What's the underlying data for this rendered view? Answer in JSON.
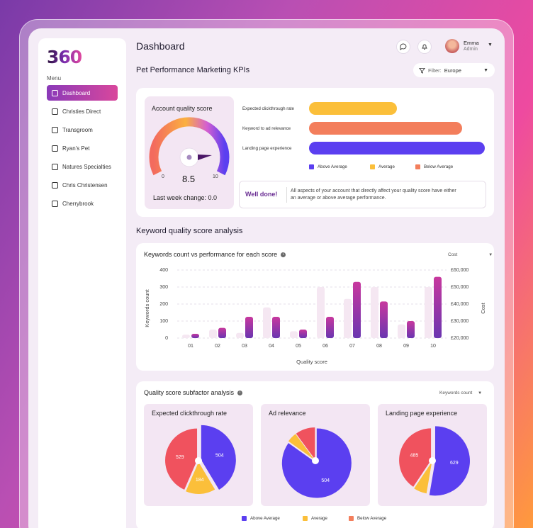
{
  "app": {
    "logo": "360"
  },
  "sidebar": {
    "menu_label": "Menu",
    "items": [
      {
        "label": "Dashboard",
        "icon": "grid-icon"
      },
      {
        "label": "Christies Direct",
        "icon": "store-icon"
      },
      {
        "label": "Transgroom",
        "icon": "card-icon"
      },
      {
        "label": "Ryan's Pet",
        "icon": "paw-icon"
      },
      {
        "label": "Natures Specialties",
        "icon": "id-card-icon"
      },
      {
        "label": "Chris Christensen",
        "icon": "dollar-icon"
      },
      {
        "label": "Cherrybrook",
        "icon": "cart-icon"
      }
    ]
  },
  "header": {
    "title": "Dashboard",
    "user": {
      "name": "Emma",
      "role": "Admin"
    }
  },
  "kpi": {
    "title": "Pet Performance Marketing KPIs",
    "filter": {
      "label": "Filter:",
      "value": "Europe"
    },
    "quality": {
      "title": "Account quality score",
      "score": "8.5",
      "min": "0",
      "max": "10",
      "last_week": "Last week change: 0.0"
    },
    "bars": [
      {
        "label": "Expected clickthrough rate",
        "value": 0.5,
        "color": "#fbbf3a"
      },
      {
        "label": "Keyword to ad relevance",
        "value": 0.87,
        "color": "#f37e5c"
      },
      {
        "label": "Landing page experience",
        "value": 1.0,
        "color": "#5b3ff0"
      }
    ],
    "legend": [
      {
        "label": "Above Average",
        "color": "#5b3ff0"
      },
      {
        "label": "Average",
        "color": "#fbbf3a"
      },
      {
        "label": "Below Average",
        "color": "#f37e5c"
      }
    ],
    "done": {
      "title": "Well done!",
      "text": "All aspects of your account that directly affect your quality score have either an  average or above average performance."
    }
  },
  "keyword_section": {
    "title": "Keyword quality score analysis",
    "card_title": "Keywords count vs performance for each score",
    "dropdown": "Cost",
    "info_icon": "i"
  },
  "chart_data": {
    "type": "bar",
    "categories": [
      "01",
      "02",
      "03",
      "04",
      "05",
      "06",
      "07",
      "08",
      "09",
      "10"
    ],
    "series": [
      {
        "values": [
          20,
          50,
          30,
          180,
          40,
          300,
          230,
          300,
          80,
          300
        ]
      },
      {
        "values": [
          25,
          60,
          125,
          125,
          50,
          125,
          330,
          215,
          100,
          360
        ]
      }
    ],
    "xlabel": "Quality score",
    "ylabel": "Keywords count",
    "y2label": "Cost",
    "ylim": [
      0,
      400
    ],
    "yticks": [
      "0",
      "100",
      "200",
      "300",
      "400"
    ],
    "y2ticks": [
      "£20,000",
      "£30,000",
      "£40,000",
      "£50,000",
      "£60,000"
    ]
  },
  "subfactor": {
    "title": "Quality score subfactor analysis",
    "dropdown": "Keywords count",
    "info_icon": "i",
    "pies": [
      {
        "title": "Expected clickthrough rate",
        "values": [
          504,
          184,
          529
        ],
        "labels": [
          "504",
          "184",
          "529"
        ]
      },
      {
        "title": "Ad relevance",
        "values": [
          504,
          30,
          60
        ],
        "labels": [
          "504",
          "",
          ""
        ]
      },
      {
        "title": "Landing page experience",
        "values": [
          629,
          80,
          485
        ],
        "labels": [
          "629",
          "",
          "485"
        ]
      }
    ],
    "colors": [
      "#5b3ff0",
      "#fbbf3a",
      "#f0525e"
    ],
    "legend": [
      {
        "label": "Above Average",
        "color": "#5b3ff0"
      },
      {
        "label": "Average",
        "color": "#fbbf3a"
      },
      {
        "label": "Below Average",
        "color": "#f37e5c"
      }
    ]
  }
}
